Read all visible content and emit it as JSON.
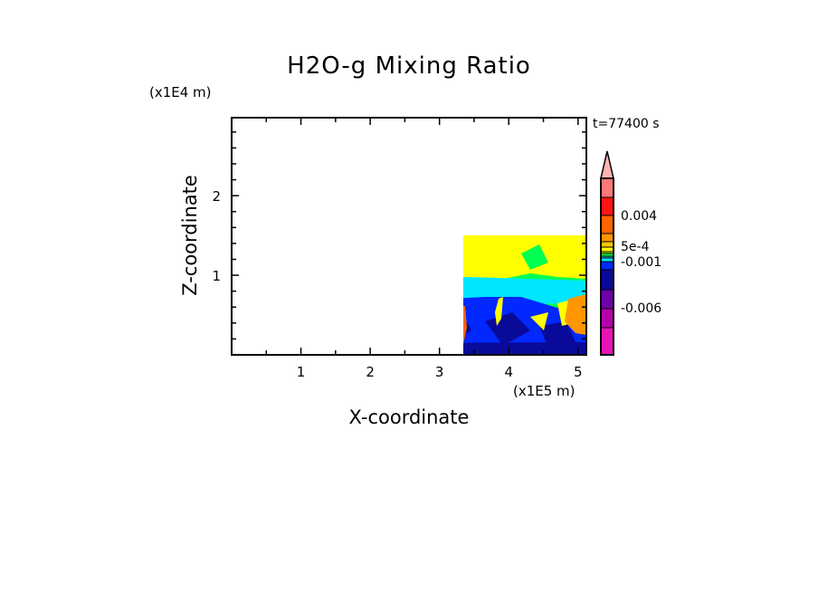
{
  "chart_data": {
    "type": "heatmap",
    "title": "H2O-g Mixing Ratio",
    "xlabel": "X-coordinate",
    "ylabel": "Z-coordinate",
    "x_unit": "(x1E5 m)",
    "y_unit": "(x1E4 m)",
    "annotation": "t=77400 s",
    "xlim": [
      0,
      5.12
    ],
    "ylim": [
      0,
      2.98
    ],
    "xticks": [
      1,
      2,
      3,
      4,
      5
    ],
    "yticks": [
      1,
      2
    ],
    "xtick_labels": [
      "1",
      "2",
      "3",
      "4",
      "5"
    ],
    "ytick_labels": [
      "1",
      "2"
    ],
    "colorbar": {
      "labels": [
        "0.004",
        "5e-4",
        "-0.001",
        "-0.006"
      ],
      "label_values": [
        0.004,
        0.0005,
        -0.001,
        -0.006
      ],
      "range": [
        -0.009,
        0.008
      ],
      "colors_top_to_bottom": [
        "#ffb4b4",
        "#ff7878",
        "#ff1414",
        "#ff6400",
        "#ff9600",
        "#ffc800",
        "#ffff00",
        "#c8ff00",
        "#00ff50",
        "#00c8c8",
        "#00e6ff",
        "#0028ff",
        "#0a0a9a",
        "#6e00aa",
        "#b400aa",
        "#e614b4"
      ],
      "extend": "max"
    }
  }
}
